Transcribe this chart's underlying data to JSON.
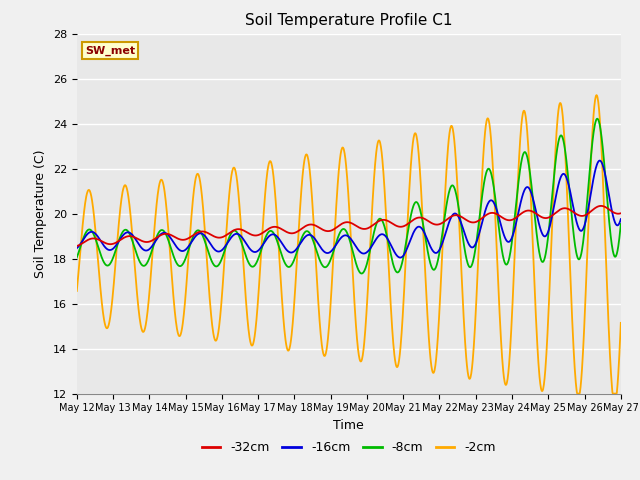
{
  "title": "Soil Temperature Profile C1",
  "xlabel": "Time",
  "ylabel": "Soil Temperature (C)",
  "ylim": [
    12,
    28
  ],
  "yticks": [
    12,
    14,
    16,
    18,
    20,
    22,
    24,
    26,
    28
  ],
  "legend_label": "SW_met",
  "series_labels": [
    "-32cm",
    "-16cm",
    "-8cm",
    "-2cm"
  ],
  "series_colors": [
    "#dd0000",
    "#0000dd",
    "#00bb00",
    "#ffaa00"
  ],
  "plot_bg_color": "#e8e8e8",
  "fig_bg_color": "#f0f0f0",
  "dates": [
    "May 12",
    "May 13",
    "May 14",
    "May 15",
    "May 16",
    "May 17",
    "May 18",
    "May 19",
    "May 20",
    "May 21",
    "May 22",
    "May 23",
    "May 24",
    "May 25",
    "May 26",
    "May 27"
  ]
}
